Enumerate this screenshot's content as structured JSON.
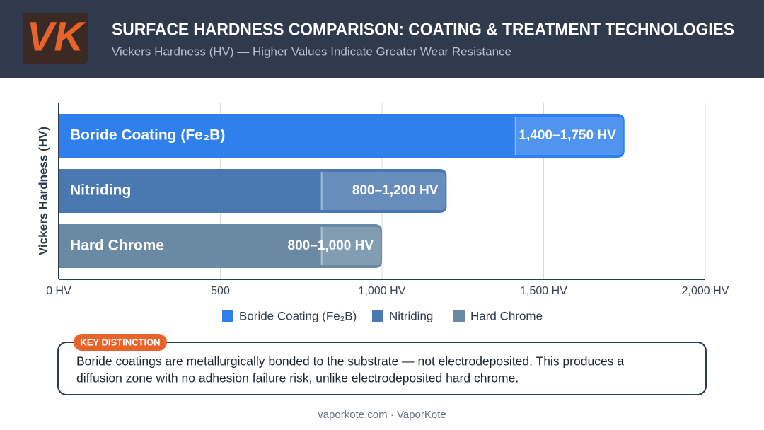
{
  "chart_data": {
    "type": "range-bar",
    "logo": "VK",
    "title": "SURFACE HARDNESS COMPARISON: COATING & TREATMENT TECHNOLOGIES",
    "subtitle": "Vickers Hardness (HV) — Higher Values Indicate Greater Wear Resistance",
    "y_label": "Vickers Hardness (HV)",
    "xlim": [
      0,
      2000
    ],
    "xticks": [
      {
        "value": 0,
        "label": "0 HV"
      },
      500,
      {
        "value": 1000,
        "label": "1,000 HV"
      },
      {
        "value": 1500,
        "label": "1,500 HV"
      },
      {
        "value": 2000,
        "label": "2,000 HV"
      }
    ],
    "grid": true,
    "series": [
      {
        "name": "Boride Coating (Fe₂B)",
        "color": "#2f80ed",
        "values": [
          1400,
          1750
        ],
        "value_labels": "1,400–1,750 HV"
      },
      {
        "name": "Nitriding",
        "color": "#4a78b0",
        "values": [
          800,
          1200
        ],
        "value_labels": "800–1,200 HV"
      },
      {
        "name": "Hard Chrome",
        "color": "#6a8aa4",
        "values": [
          800,
          1000
        ],
        "value_labels": "800–1,000 HV"
      }
    ],
    "callout": {
      "tag": "KEY DISTINCTION",
      "text": [
        "Boride coatings are metallurgically bonded to the substrate — not electrodeposited. This produces a",
        "diffusion zone with no adhesion failure risk, unlike electrodeposited hard chrome."
      ]
    },
    "footer": "vaporkote.com · VaporKote"
  }
}
